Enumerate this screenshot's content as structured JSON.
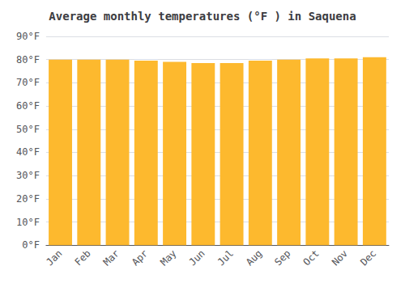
{
  "chart_data": {
    "type": "bar",
    "title": "Average monthly temperatures (°F ) in Saquena",
    "categories": [
      "Jan",
      "Feb",
      "Mar",
      "Apr",
      "May",
      "Jun",
      "Jul",
      "Aug",
      "Sep",
      "Oct",
      "Nov",
      "Dec"
    ],
    "values": [
      80,
      80,
      80,
      79.5,
      79,
      78.5,
      78.5,
      79.5,
      80,
      80.5,
      80.5,
      81
    ],
    "color": "#FDB92E",
    "ylim": [
      0,
      90
    ],
    "yticks": [
      {
        "value": 0,
        "label": "0°F"
      },
      {
        "value": 10,
        "label": "10°F"
      },
      {
        "value": 20,
        "label": "20°F"
      },
      {
        "value": 30,
        "label": "30°F"
      },
      {
        "value": 40,
        "label": "40°F"
      },
      {
        "value": 50,
        "label": "50°F"
      },
      {
        "value": 60,
        "label": "60°F"
      },
      {
        "value": 70,
        "label": "70°F"
      },
      {
        "value": 80,
        "label": "80°F"
      },
      {
        "value": 90,
        "label": "90°F"
      }
    ],
    "grid": true
  }
}
